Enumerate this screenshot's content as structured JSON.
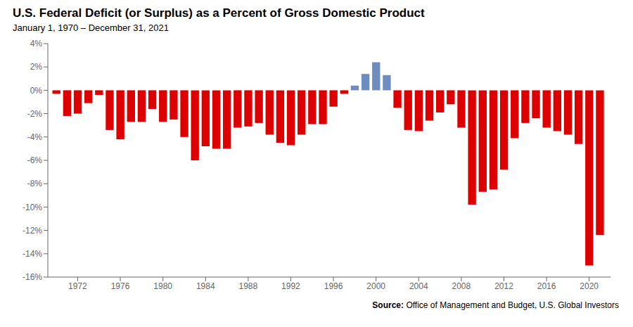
{
  "chart_data": {
    "type": "bar",
    "title": "U.S. Federal Deficit (or Surplus) as a Percent of Gross Domestic Product",
    "subtitle": "January 1, 1970 – December 31, 2021",
    "source": "Source: Office of Management and Budget, U.S. Global Investors",
    "x": [
      1970,
      1971,
      1972,
      1973,
      1974,
      1975,
      1976,
      1977,
      1978,
      1979,
      1980,
      1981,
      1982,
      1983,
      1984,
      1985,
      1986,
      1987,
      1988,
      1989,
      1990,
      1991,
      1992,
      1993,
      1994,
      1995,
      1996,
      1997,
      1998,
      1999,
      2000,
      2001,
      2002,
      2003,
      2004,
      2005,
      2006,
      2007,
      2008,
      2009,
      2010,
      2011,
      2012,
      2013,
      2014,
      2015,
      2016,
      2017,
      2018,
      2019,
      2020,
      2021
    ],
    "values": [
      -0.3,
      -2.2,
      -2.0,
      -1.1,
      -0.4,
      -3.4,
      -4.2,
      -2.7,
      -2.7,
      -1.6,
      -2.7,
      -2.5,
      -4.0,
      -6.0,
      -4.8,
      -5.0,
      -5.0,
      -3.2,
      -3.1,
      -2.8,
      -3.8,
      -4.5,
      -4.7,
      -3.8,
      -2.9,
      -2.9,
      -1.4,
      -0.3,
      0.4,
      1.4,
      2.4,
      1.3,
      -1.5,
      -3.4,
      -3.5,
      -2.6,
      -1.9,
      -1.2,
      -3.2,
      -9.8,
      -8.7,
      -8.5,
      -6.8,
      -4.1,
      -2.8,
      -2.4,
      -3.2,
      -3.5,
      -3.8,
      -4.6,
      -15.0,
      -12.4
    ],
    "colors": [
      "#dd0000",
      "#dd0000",
      "#dd0000",
      "#dd0000",
      "#dd0000",
      "#dd0000",
      "#dd0000",
      "#dd0000",
      "#dd0000",
      "#dd0000",
      "#dd0000",
      "#dd0000",
      "#dd0000",
      "#dd0000",
      "#dd0000",
      "#dd0000",
      "#dd0000",
      "#dd0000",
      "#dd0000",
      "#dd0000",
      "#dd0000",
      "#dd0000",
      "#dd0000",
      "#dd0000",
      "#dd0000",
      "#dd0000",
      "#dd0000",
      "#dd0000",
      "#6d8dbf",
      "#6d8dbf",
      "#6d8dbf",
      "#6d8dbf",
      "#dd0000",
      "#dd0000",
      "#dd0000",
      "#dd0000",
      "#dd0000",
      "#dd0000",
      "#dd0000",
      "#dd0000",
      "#dd0000",
      "#dd0000",
      "#dd0000",
      "#dd0000",
      "#dd0000",
      "#dd0000",
      "#dd0000",
      "#dd0000",
      "#dd0000",
      "#dd0000",
      "#dd0000",
      "#dd0000"
    ],
    "xlim": [
      1969.2,
      2022.0
    ],
    "xticks": [
      1972,
      1976,
      1980,
      1984,
      1988,
      1992,
      1996,
      2000,
      2004,
      2008,
      2012,
      2016,
      2020
    ],
    "ylim": [
      -16,
      4
    ],
    "yticks": [
      {
        "value": -16,
        "label": "-16%"
      },
      {
        "value": -14,
        "label": "-14%"
      },
      {
        "value": -12,
        "label": "-12%"
      },
      {
        "value": -10,
        "label": "-10%"
      },
      {
        "value": -8,
        "label": "-8%"
      },
      {
        "value": -6,
        "label": "-6%"
      },
      {
        "value": -4,
        "label": "-4%"
      },
      {
        "value": -2,
        "label": "-2%"
      },
      {
        "value": 0,
        "label": "0%"
      },
      {
        "value": 2,
        "label": "2%"
      },
      {
        "value": 4,
        "label": "4%"
      }
    ],
    "grid": false
  }
}
